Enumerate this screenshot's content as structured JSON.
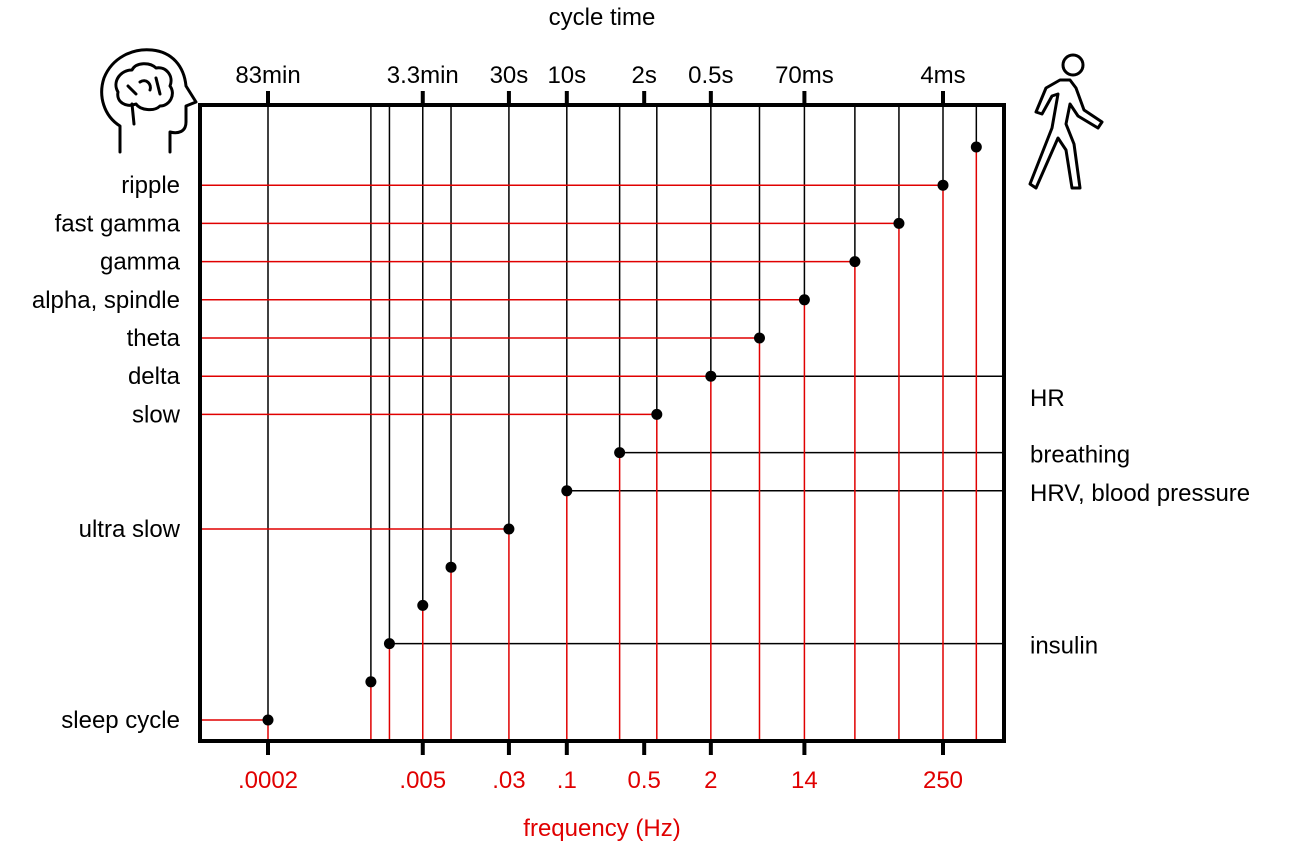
{
  "chart_data": {
    "type": "scatter",
    "title": "",
    "x_axis_top": {
      "label": "cycle time",
      "ticks": [
        {
          "x": 0.0002,
          "label": "83min"
        },
        {
          "x": 0.005,
          "label": "3.3min"
        },
        {
          "x": 0.03,
          "label": "30s"
        },
        {
          "x": 0.1,
          "label": "10s"
        },
        {
          "x": 0.5,
          "label": "2s"
        },
        {
          "x": 2,
          "label": "0.5s"
        },
        {
          "x": 14,
          "label": "70ms"
        },
        {
          "x": 250,
          "label": "4ms"
        }
      ]
    },
    "x_axis_bottom": {
      "label": "frequency (Hz)",
      "scale": "log",
      "ticks": [
        {
          "x": 0.0002,
          "label": ".0002"
        },
        {
          "x": 0.005,
          "label": ".005"
        },
        {
          "x": 0.03,
          "label": ".03"
        },
        {
          "x": 0.1,
          "label": ".1"
        },
        {
          "x": 0.5,
          "label": "0.5"
        },
        {
          "x": 2,
          "label": "2"
        },
        {
          "x": 14,
          "label": "14"
        },
        {
          "x": 250,
          "label": "250"
        }
      ]
    },
    "points": [
      {
        "freq": 0.0002,
        "left": "sleep cycle",
        "right": ""
      },
      {
        "freq": 0.0017,
        "left": "",
        "right": ""
      },
      {
        "freq": 0.0025,
        "left": "",
        "right": "insulin"
      },
      {
        "freq": 0.005,
        "left": "",
        "right": ""
      },
      {
        "freq": 0.009,
        "left": "",
        "right": ""
      },
      {
        "freq": 0.03,
        "left": "ultra slow",
        "right": ""
      },
      {
        "freq": 0.1,
        "left": "",
        "right": "HRV, blood pressure"
      },
      {
        "freq": 0.3,
        "left": "",
        "right": "breathing"
      },
      {
        "freq": 0.65,
        "left": "slow",
        "right": ""
      },
      {
        "freq": 2,
        "left": "delta",
        "right": "HR"
      },
      {
        "freq": 5.5,
        "left": "theta",
        "right": ""
      },
      {
        "freq": 14,
        "left": "alpha, spindle",
        "right": ""
      },
      {
        "freq": 40,
        "left": "gamma",
        "right": ""
      },
      {
        "freq": 100,
        "left": "fast gamma",
        "right": ""
      },
      {
        "freq": 250,
        "left": "ripple",
        "right": ""
      },
      {
        "freq": 500,
        "left": "",
        "right": ""
      }
    ],
    "left_group_icon": "brain-head-icon",
    "right_group_icon": "walking-person-icon",
    "colors": {
      "brain": "#e00000",
      "body": "#000000"
    }
  }
}
